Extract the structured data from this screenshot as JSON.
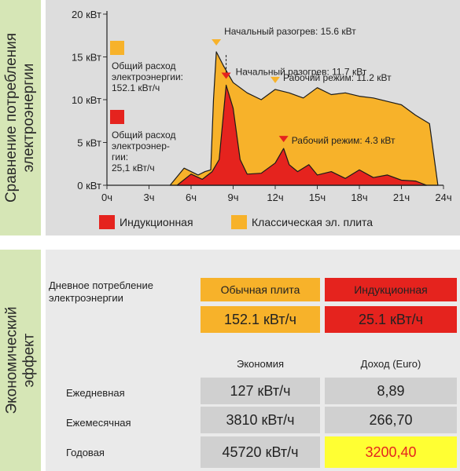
{
  "side_labels": {
    "top": [
      "Сравнение потребления",
      "электроэнергии"
    ],
    "bottom": [
      "Экономический",
      "эффект"
    ]
  },
  "colors": {
    "induction": "#e5231e",
    "classic": "#f7b22a",
    "panel_bg": "#dddddd",
    "side_bg": "#d6e6b6",
    "highlight": "#ffff33"
  },
  "chart_data": {
    "type": "area",
    "xlabel": "",
    "ylabel": "",
    "xlim": [
      0,
      24
    ],
    "ylim": [
      0,
      20
    ],
    "x_ticks": [
      "0ч",
      "3ч",
      "6ч",
      "9ч",
      "12ч",
      "15ч",
      "18ч",
      "21ч",
      "24ч"
    ],
    "y_ticks": [
      "0 кВт",
      "5 кВт",
      "10 кВт",
      "15 кВт",
      "20 кВт"
    ],
    "series": [
      {
        "name": "Классическая эл. плита",
        "color": "#f7b22a",
        "points": [
          [
            4.5,
            0
          ],
          [
            5.5,
            2
          ],
          [
            6.5,
            1.2
          ],
          [
            7,
            1.6
          ],
          [
            7.4,
            1.8
          ],
          [
            7.6,
            10
          ],
          [
            7.8,
            15.6
          ],
          [
            8.3,
            14
          ],
          [
            9,
            12
          ],
          [
            10,
            10.8
          ],
          [
            11,
            10
          ],
          [
            12,
            11.2
          ],
          [
            13,
            10.8
          ],
          [
            14,
            10.2
          ],
          [
            15,
            11.4
          ],
          [
            16,
            10.6
          ],
          [
            17,
            10.8
          ],
          [
            18,
            10.4
          ],
          [
            19,
            10.2
          ],
          [
            20,
            9.8
          ],
          [
            21,
            9.4
          ],
          [
            22,
            8.2
          ],
          [
            23,
            7.2
          ],
          [
            23.6,
            0
          ]
        ]
      },
      {
        "name": "Индукционная",
        "color": "#e5231e",
        "points": [
          [
            5,
            0
          ],
          [
            6,
            1.3
          ],
          [
            6.8,
            0.7
          ],
          [
            7.5,
            1.6
          ],
          [
            8,
            3
          ],
          [
            8.5,
            11.7
          ],
          [
            9,
            9
          ],
          [
            9.5,
            3
          ],
          [
            10,
            1.3
          ],
          [
            11,
            1.4
          ],
          [
            12,
            2.6
          ],
          [
            12.6,
            4.3
          ],
          [
            13,
            2.4
          ],
          [
            13.6,
            1.6
          ],
          [
            14.4,
            2.4
          ],
          [
            15,
            1.2
          ],
          [
            16,
            1.6
          ],
          [
            17,
            0.8
          ],
          [
            18,
            1.8
          ],
          [
            19,
            0.9
          ],
          [
            20,
            1.2
          ],
          [
            21,
            0.6
          ],
          [
            22,
            0.5
          ],
          [
            22.8,
            0
          ]
        ]
      }
    ],
    "annotations": [
      {
        "text": "Начальный разогрев: 15.6 кВт",
        "x": 7.8,
        "y": 15.6,
        "marker": "#f7b22a"
      },
      {
        "text": "Начальный разогрев: 11.7 кВт",
        "x": 8.5,
        "y": 11.7,
        "marker": "#e5231e"
      },
      {
        "text": "Рабочий режим: 11.2 кВт",
        "x": 12.0,
        "y": 11.2,
        "marker": "#f7b22a"
      },
      {
        "text": "Рабочий режим: 4.3 кВт",
        "x": 12.6,
        "y": 4.3,
        "marker": "#e5231e"
      }
    ],
    "totals": [
      {
        "lines": [
          "Общий расход",
          "электроэнергии:",
          "152.1 кВт/ч"
        ],
        "color": "#f7b22a"
      },
      {
        "lines": [
          "Общий расход",
          "электроэнер-",
          "гии:",
          "25,1 кВт/ч"
        ],
        "color": "#e5231e"
      }
    ],
    "legend": [
      {
        "label": "Индукционная",
        "color": "#e5231e"
      },
      {
        "label": "Классическая эл. плита",
        "color": "#f7b22a"
      }
    ]
  },
  "economy": {
    "daily_label": "Дневное потребление\nэлектроэнергии",
    "col_classic": "Обычная плита",
    "col_induction": "Индукционная",
    "daily_classic": "152.1 кВт/ч",
    "daily_induction": "25.1 кВт/ч",
    "header_savings": "Экономия",
    "header_income": "Доход (Euro)",
    "rows": [
      {
        "label": "Ежедневная",
        "savings": "127 кВт/ч",
        "income": "8,89"
      },
      {
        "label": "Ежемесячная",
        "savings": "3810 кВт/ч",
        "income": "266,70"
      },
      {
        "label": "Годовая",
        "savings": "45720 кВт/ч",
        "income": "3200,40"
      }
    ]
  }
}
